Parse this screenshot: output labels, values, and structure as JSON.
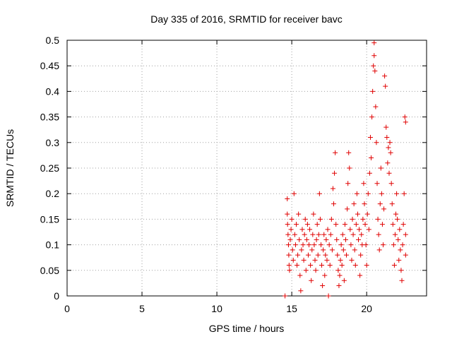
{
  "chart_data": {
    "type": "scatter",
    "title": "Day 335 of 2016, SRMTID for receiver bavc",
    "xlabel": "GPS time / hours",
    "ylabel": "SRMTID / TECUs",
    "xlim": [
      0,
      24
    ],
    "ylim": [
      0,
      0.5
    ],
    "x_ticks": [
      0,
      5,
      10,
      15,
      20
    ],
    "x_tick_labels": [
      "0",
      "5",
      "10",
      "15",
      "20"
    ],
    "y_ticks": [
      0,
      0.05,
      0.1,
      0.15,
      0.2,
      0.25,
      0.3,
      0.35,
      0.4,
      0.45,
      0.5
    ],
    "y_tick_labels": [
      "0",
      "0.05",
      "0.1",
      "0.15",
      "0.2",
      "0.25",
      "0.3",
      "0.35",
      "0.4",
      "0.45",
      "0.5"
    ],
    "grid": true,
    "marker": "+",
    "marker_color": "#e00000",
    "series": [
      {
        "name": "SRMTID",
        "points": [
          [
            14.55,
            0.0
          ],
          [
            17.45,
            0.0
          ],
          [
            14.7,
            0.19
          ],
          [
            14.7,
            0.16
          ],
          [
            14.72,
            0.14
          ],
          [
            14.75,
            0.12
          ],
          [
            14.78,
            0.1
          ],
          [
            14.8,
            0.08
          ],
          [
            14.82,
            0.06
          ],
          [
            14.85,
            0.05
          ],
          [
            14.9,
            0.11
          ],
          [
            14.95,
            0.13
          ],
          [
            15.0,
            0.15
          ],
          [
            15.05,
            0.09
          ],
          [
            15.1,
            0.07
          ],
          [
            15.15,
            0.2
          ],
          [
            15.2,
            0.12
          ],
          [
            15.25,
            0.1
          ],
          [
            15.3,
            0.14
          ],
          [
            15.35,
            0.06
          ],
          [
            15.4,
            0.08
          ],
          [
            15.45,
            0.16
          ],
          [
            15.5,
            0.11
          ],
          [
            15.55,
            0.04
          ],
          [
            15.6,
            0.01
          ],
          [
            15.65,
            0.09
          ],
          [
            15.7,
            0.13
          ],
          [
            15.75,
            0.1
          ],
          [
            15.8,
            0.07
          ],
          [
            15.85,
            0.12
          ],
          [
            15.9,
            0.15
          ],
          [
            15.95,
            0.05
          ],
          [
            16.0,
            0.11
          ],
          [
            16.05,
            0.14
          ],
          [
            16.1,
            0.08
          ],
          [
            16.15,
            0.1
          ],
          [
            16.2,
            0.13
          ],
          [
            16.25,
            0.06
          ],
          [
            16.3,
            0.03
          ],
          [
            16.35,
            0.09
          ],
          [
            16.4,
            0.12
          ],
          [
            16.45,
            0.16
          ],
          [
            16.5,
            0.1
          ],
          [
            16.55,
            0.07
          ],
          [
            16.6,
            0.05
          ],
          [
            16.65,
            0.11
          ],
          [
            16.7,
            0.14
          ],
          [
            16.75,
            0.08
          ],
          [
            16.8,
            0.12
          ],
          [
            16.85,
            0.2
          ],
          [
            16.9,
            0.15
          ],
          [
            16.95,
            0.1
          ],
          [
            17.0,
            0.06
          ],
          [
            17.05,
            0.02
          ],
          [
            17.1,
            0.09
          ],
          [
            17.15,
            0.12
          ],
          [
            17.2,
            0.04
          ],
          [
            17.25,
            0.08
          ],
          [
            17.3,
            0.11
          ],
          [
            17.35,
            0.07
          ],
          [
            17.4,
            0.13
          ],
          [
            17.5,
            0.1
          ],
          [
            17.55,
            0.06
          ],
          [
            17.6,
            0.12
          ],
          [
            17.65,
            0.15
          ],
          [
            17.7,
            0.09
          ],
          [
            17.75,
            0.21
          ],
          [
            17.8,
            0.18
          ],
          [
            17.85,
            0.24
          ],
          [
            17.9,
            0.28
          ],
          [
            17.95,
            0.14
          ],
          [
            18.0,
            0.11
          ],
          [
            18.05,
            0.08
          ],
          [
            18.1,
            0.05
          ],
          [
            18.15,
            0.02
          ],
          [
            18.2,
            0.04
          ],
          [
            18.25,
            0.07
          ],
          [
            18.3,
            0.1
          ],
          [
            18.35,
            0.06
          ],
          [
            18.4,
            0.12
          ],
          [
            18.45,
            0.09
          ],
          [
            18.5,
            0.03
          ],
          [
            18.55,
            0.14
          ],
          [
            18.6,
            0.11
          ],
          [
            18.65,
            0.08
          ],
          [
            18.7,
            0.17
          ],
          [
            18.75,
            0.22
          ],
          [
            18.8,
            0.28
          ],
          [
            18.85,
            0.25
          ],
          [
            18.9,
            0.13
          ],
          [
            18.95,
            0.1
          ],
          [
            19.0,
            0.07
          ],
          [
            19.05,
            0.15
          ],
          [
            19.1,
            0.12
          ],
          [
            19.15,
            0.18
          ],
          [
            19.2,
            0.09
          ],
          [
            19.25,
            0.06
          ],
          [
            19.3,
            0.14
          ],
          [
            19.35,
            0.2
          ],
          [
            19.4,
            0.16
          ],
          [
            19.45,
            0.11
          ],
          [
            19.5,
            0.13
          ],
          [
            19.55,
            0.04
          ],
          [
            19.6,
            0.08
          ],
          [
            19.65,
            0.12
          ],
          [
            19.7,
            0.1
          ],
          [
            19.75,
            0.15
          ],
          [
            19.8,
            0.22
          ],
          [
            19.85,
            0.18
          ],
          [
            19.9,
            0.14
          ],
          [
            19.95,
            0.1
          ],
          [
            20.0,
            0.06
          ],
          [
            20.05,
            0.16
          ],
          [
            20.1,
            0.2
          ],
          [
            20.15,
            0.13
          ],
          [
            20.2,
            0.24
          ],
          [
            20.25,
            0.31
          ],
          [
            20.3,
            0.27
          ],
          [
            20.35,
            0.35
          ],
          [
            20.4,
            0.4
          ],
          [
            20.45,
            0.45
          ],
          [
            20.5,
            0.495
          ],
          [
            20.5,
            0.47
          ],
          [
            20.55,
            0.44
          ],
          [
            20.6,
            0.37
          ],
          [
            20.65,
            0.3
          ],
          [
            20.7,
            0.22
          ],
          [
            20.75,
            0.15
          ],
          [
            20.8,
            0.12
          ],
          [
            20.85,
            0.09
          ],
          [
            20.9,
            0.18
          ],
          [
            20.95,
            0.25
          ],
          [
            21.0,
            0.2
          ],
          [
            21.05,
            0.14
          ],
          [
            21.1,
            0.1
          ],
          [
            21.15,
            0.17
          ],
          [
            21.2,
            0.43
          ],
          [
            21.25,
            0.41
          ],
          [
            21.3,
            0.33
          ],
          [
            21.35,
            0.31
          ],
          [
            21.4,
            0.26
          ],
          [
            21.45,
            0.29
          ],
          [
            21.5,
            0.24
          ],
          [
            21.55,
            0.3
          ],
          [
            21.6,
            0.28
          ],
          [
            21.65,
            0.22
          ],
          [
            21.7,
            0.18
          ],
          [
            21.75,
            0.14
          ],
          [
            21.8,
            0.1
          ],
          [
            21.85,
            0.06
          ],
          [
            21.9,
            0.12
          ],
          [
            21.95,
            0.16
          ],
          [
            22.0,
            0.2
          ],
          [
            22.05,
            0.15
          ],
          [
            22.1,
            0.11
          ],
          [
            22.15,
            0.07
          ],
          [
            22.2,
            0.13
          ],
          [
            22.25,
            0.09
          ],
          [
            22.3,
            0.05
          ],
          [
            22.35,
            0.03
          ],
          [
            22.4,
            0.1
          ],
          [
            22.45,
            0.14
          ],
          [
            22.5,
            0.2
          ],
          [
            22.55,
            0.35
          ],
          [
            22.6,
            0.34
          ],
          [
            22.6,
            0.08
          ],
          [
            22.6,
            0.12
          ]
        ]
      }
    ]
  }
}
